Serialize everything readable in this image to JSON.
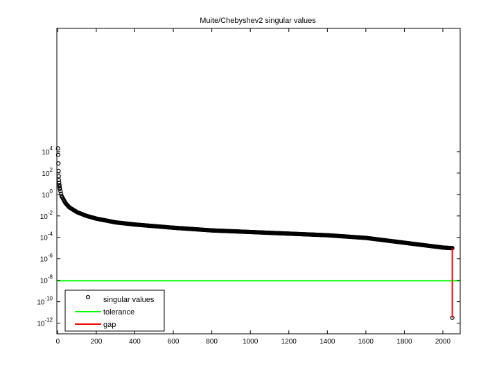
{
  "chart_data": {
    "type": "scatter",
    "title": "Muite/Chebyshev2 singular values",
    "xlabel": "",
    "ylabel": "",
    "y_scale": "log10",
    "xlim": [
      -5,
      2090
    ],
    "ylim_exponent": [
      -13,
      15.5
    ],
    "x_ticks": [
      0,
      200,
      400,
      600,
      800,
      1000,
      1200,
      1400,
      1600,
      1800,
      2000
    ],
    "y_tick_exponents": [
      -12,
      -10,
      -8,
      -6,
      -4,
      -2,
      0,
      2,
      4
    ],
    "grid": false,
    "legend_position": "bottom-left",
    "legend": [
      "singular values",
      "tolerance",
      "gap"
    ],
    "colors": {
      "singular_values": "#000000",
      "tolerance": "#00ff00",
      "gap": "#ff0000"
    },
    "series": [
      {
        "name": "singular values",
        "style": "circle-markers",
        "head_points": [
          {
            "x": 1,
            "y_exp": 4.3
          },
          {
            "x": 2,
            "y_exp": 3.7
          },
          {
            "x": 3,
            "y_exp": 2.9
          },
          {
            "x": 4,
            "y_exp": 2.2
          },
          {
            "x": 5,
            "y_exp": 1.7
          },
          {
            "x": 6,
            "y_exp": 1.35
          },
          {
            "x": 7,
            "y_exp": 1.1
          },
          {
            "x": 8,
            "y_exp": 0.9
          },
          {
            "x": 9,
            "y_exp": 0.75
          },
          {
            "x": 10,
            "y_exp": 0.6
          }
        ],
        "curve_knots": [
          {
            "x": 10,
            "y_exp": 0.6
          },
          {
            "x": 20,
            "y_exp": -0.15
          },
          {
            "x": 40,
            "y_exp": -0.8
          },
          {
            "x": 60,
            "y_exp": -1.2
          },
          {
            "x": 100,
            "y_exp": -1.65
          },
          {
            "x": 150,
            "y_exp": -2.0
          },
          {
            "x": 200,
            "y_exp": -2.25
          },
          {
            "x": 300,
            "y_exp": -2.6
          },
          {
            "x": 400,
            "y_exp": -2.8
          },
          {
            "x": 600,
            "y_exp": -3.1
          },
          {
            "x": 800,
            "y_exp": -3.35
          },
          {
            "x": 1000,
            "y_exp": -3.5
          },
          {
            "x": 1200,
            "y_exp": -3.65
          },
          {
            "x": 1400,
            "y_exp": -3.8
          },
          {
            "x": 1600,
            "y_exp": -4.05
          },
          {
            "x": 1800,
            "y_exp": -4.5
          },
          {
            "x": 2000,
            "y_exp": -4.95
          },
          {
            "x": 2048,
            "y_exp": -5.0
          }
        ],
        "tail_point": {
          "x": 2049,
          "y_exp": -11.5
        }
      },
      {
        "name": "tolerance",
        "style": "horizontal-line",
        "y_exp": -8.05
      },
      {
        "name": "gap",
        "style": "vertical-line",
        "x": 2049,
        "y_exp_from": -5.0,
        "y_exp_to": -11.5
      }
    ]
  }
}
